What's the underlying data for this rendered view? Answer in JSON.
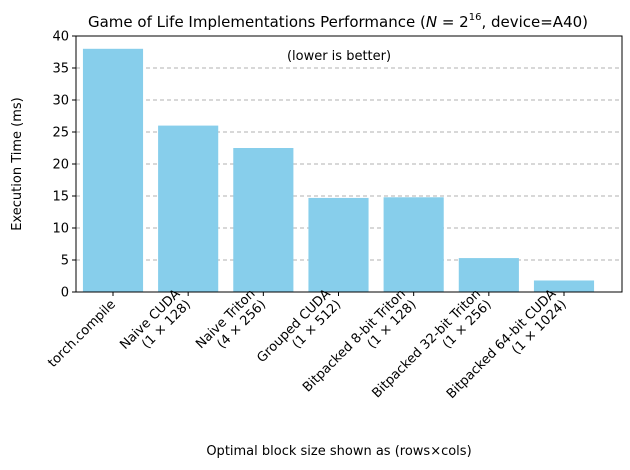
{
  "chart_data": {
    "type": "bar",
    "title_parts": {
      "prefix": "Game of Life Implementations Performance (",
      "var": "N",
      "eq": " = 2",
      "exp": "16",
      "suffix": ", device=A40)"
    },
    "categories": [
      [
        "torch.compile"
      ],
      [
        "Naive CUDA",
        "(1 × 128)"
      ],
      [
        "Naive Triton",
        "(4 × 256)"
      ],
      [
        "Grouped CUDA",
        "(1 × 512)"
      ],
      [
        "Bitpacked 8-bit Triton",
        "(1 × 128)"
      ],
      [
        "Bitpacked 32-bit Triton",
        "(1 × 256)"
      ],
      [
        "Bitpacked 64-bit CUDA",
        "(1 × 1024)"
      ]
    ],
    "values": [
      38.0,
      26.0,
      22.5,
      14.7,
      14.8,
      5.3,
      1.8
    ],
    "ylabel": "Execution Time (ms)",
    "xlabel": "Optimal block size shown as (rows×cols)",
    "annotation": "(lower is better)",
    "ylim": [
      0,
      40
    ],
    "yticks": [
      "0",
      "5",
      "10",
      "15",
      "20",
      "25",
      "30",
      "35",
      "40"
    ],
    "grid": "y-dashed",
    "bar_color": "#87ceeb",
    "grid_color": "#b0b0b0"
  }
}
